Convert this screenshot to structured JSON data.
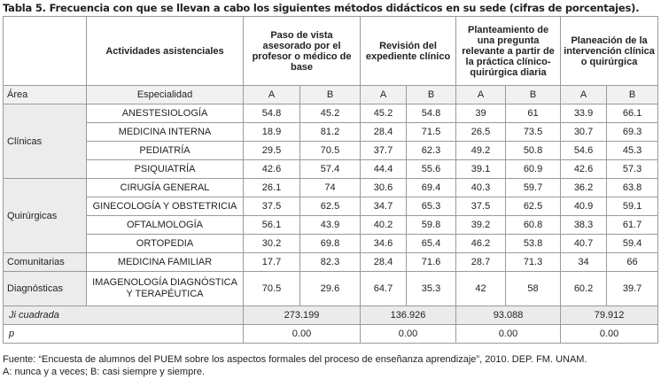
{
  "title": "Tabla 5. Frecuencia con que se llevan a cabo los siguientes métodos didácticos en su sede (cifras de porcentajes).",
  "headers": {
    "actividades": "Actividades asistenciales",
    "methods": [
      "Paso de vista asesorado por el profesor o médico de base",
      "Revisión del expediente clínico",
      "Planteamiento de una pregunta relevante a partir de la práctica clínico-quirúrgica diaria",
      "Planeación de la intervención clínica o quirúrgica"
    ]
  },
  "subheader": {
    "area": "Área",
    "especialidad": "Especialidad",
    "a": "A",
    "b": "B"
  },
  "groups": [
    {
      "area": "Clínicas",
      "rows": [
        {
          "spec": "ANESTESIOLOGÍA",
          "values": [
            "54.8",
            "45.2",
            "45.2",
            "54.8",
            "39",
            "61",
            "33.9",
            "66.1"
          ]
        },
        {
          "spec": "MEDICINA INTERNA",
          "values": [
            "18.9",
            "81.2",
            "28.4",
            "71.5",
            "26.5",
            "73.5",
            "30.7",
            "69.3"
          ]
        },
        {
          "spec": "PEDIATRÍA",
          "values": [
            "29.5",
            "70.5",
            "37.7",
            "62.3",
            "49.2",
            "50.8",
            "54.6",
            "45.3"
          ]
        },
        {
          "spec": "PSIQUIATRÍA",
          "values": [
            "42.6",
            "57.4",
            "44.4",
            "55.6",
            "39.1",
            "60.9",
            "42.6",
            "57.3"
          ]
        }
      ]
    },
    {
      "area": "Quirúrgicas",
      "rows": [
        {
          "spec": "CIRUGÍA GENERAL",
          "values": [
            "26.1",
            "74",
            "30.6",
            "69.4",
            "40.3",
            "59.7",
            "36.2",
            "63.8"
          ]
        },
        {
          "spec": "GINECOLOGÍA Y OBSTETRICIA",
          "values": [
            "37.5",
            "62.5",
            "34.7",
            "65.3",
            "37.5",
            "62.5",
            "40.9",
            "59.1"
          ]
        },
        {
          "spec": "OFTALMOLOGÍA",
          "values": [
            "56.1",
            "43.9",
            "40.2",
            "59.8",
            "39.2",
            "60.8",
            "38.3",
            "61.7"
          ]
        },
        {
          "spec": "ORTOPEDIA",
          "values": [
            "30.2",
            "69.8",
            "34.6",
            "65.4",
            "46.2",
            "53.8",
            "40.7",
            "59.4"
          ]
        }
      ]
    },
    {
      "area": "Comunitarias",
      "rows": [
        {
          "spec": "MEDICINA FAMILIAR",
          "values": [
            "17.7",
            "82.3",
            "28.4",
            "71.6",
            "28.7",
            "71.3",
            "34",
            "66"
          ]
        }
      ]
    },
    {
      "area": "Diagnósticas",
      "rows": [
        {
          "spec": "IMAGENOLOGÍA DIAGNÓSTICA Y TERAPÉUTICA",
          "values": [
            "70.5",
            "29.6",
            "64.7",
            "35.3",
            "42",
            "58",
            "60.2",
            "39.7"
          ]
        }
      ]
    }
  ],
  "stats": [
    {
      "label": "Ji cuadrada",
      "values": [
        "273.199",
        "136.926",
        "93.088",
        "79.912"
      ]
    },
    {
      "label": "p",
      "values": [
        "0.00",
        "0.00",
        "0.00",
        "0.00"
      ]
    }
  ],
  "footer": {
    "source": "Fuente: “Encuesta de alumnos del PUEM sobre los aspectos formales del proceso de enseñanza aprendizaje”, 2010. DEP. FM. UNAM.",
    "legend": "A: nunca y a veces; B: casi siempre y siempre."
  }
}
